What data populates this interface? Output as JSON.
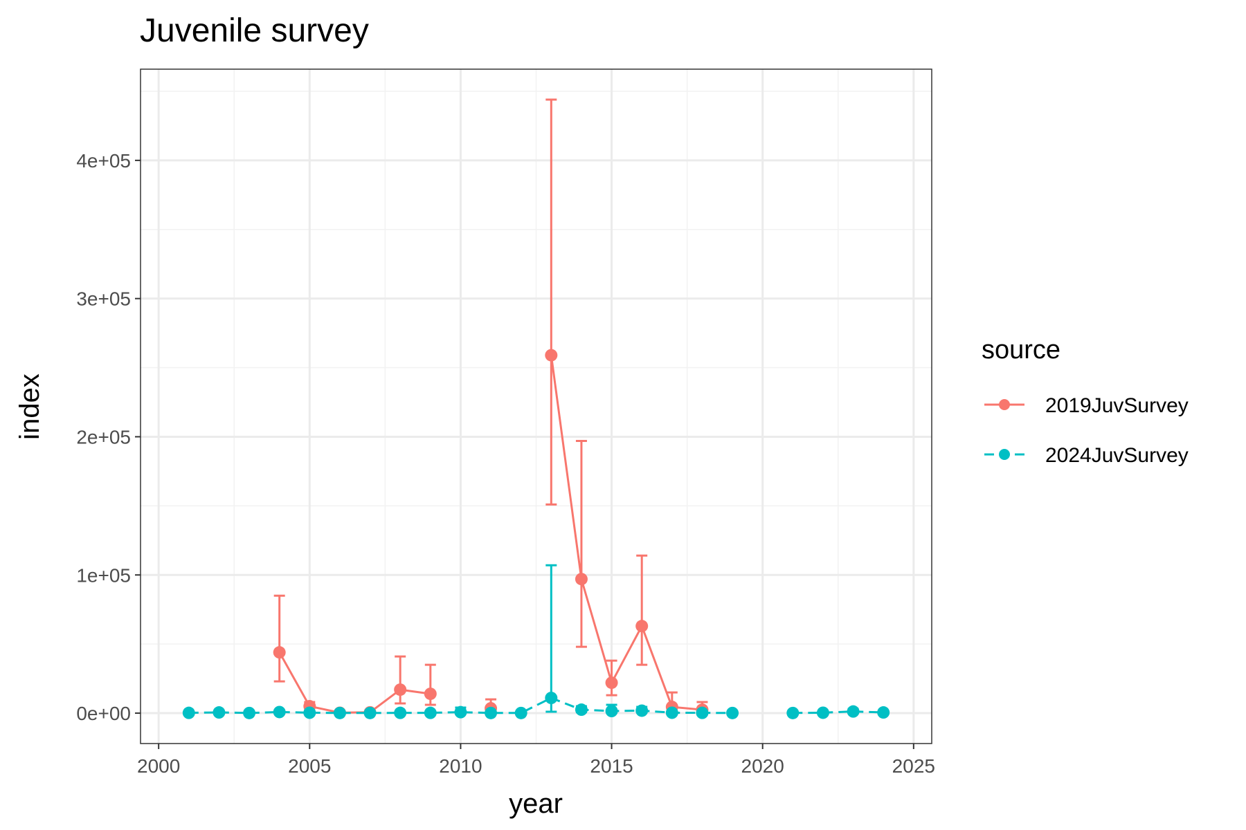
{
  "chart_data": {
    "type": "scatter",
    "title": "Juvenile survey",
    "xlabel": "year",
    "ylabel": "index",
    "xlim": [
      1999.4,
      2025.6
    ],
    "ylim": [
      -22000,
      466000
    ],
    "x_ticks": [
      2000,
      2005,
      2010,
      2015,
      2020,
      2025
    ],
    "x_tick_labels": [
      "2000",
      "2005",
      "2010",
      "2015",
      "2020",
      "2025"
    ],
    "y_ticks": [
      0,
      100000,
      200000,
      300000,
      400000
    ],
    "y_tick_labels": [
      "0e+00",
      "1e+05",
      "2e+05",
      "3e+05",
      "4e+05"
    ],
    "grid": true,
    "legend": {
      "title": "source",
      "position": "right"
    },
    "series": [
      {
        "name": "2019JuvSurvey",
        "color": "#F8766D",
        "points": [
          {
            "x": 2004,
            "y": 44000,
            "lo": 23000,
            "hi": 85000
          },
          {
            "x": 2005,
            "y": 5000,
            "lo": 2000,
            "hi": 8000
          },
          {
            "x": 2006,
            "y": 300,
            "lo": 100,
            "hi": 800
          },
          {
            "x": 2007,
            "y": 600,
            "lo": 200,
            "hi": 1500
          },
          {
            "x": 2008,
            "y": 17000,
            "lo": 7000,
            "hi": 41000
          },
          {
            "x": 2009,
            "y": 14000,
            "lo": 6000,
            "hi": 35000
          },
          {
            "x": 2011,
            "y": 3500,
            "lo": 1000,
            "hi": 10000
          },
          {
            "x": 2013,
            "y": 259000,
            "lo": 151000,
            "hi": 444000
          },
          {
            "x": 2014,
            "y": 97000,
            "lo": 48000,
            "hi": 197000
          },
          {
            "x": 2015,
            "y": 22000,
            "lo": 13000,
            "hi": 38000
          },
          {
            "x": 2016,
            "y": 63000,
            "lo": 35000,
            "hi": 114000
          },
          {
            "x": 2017,
            "y": 4500,
            "lo": 1500,
            "hi": 15000
          },
          {
            "x": 2018,
            "y": 2500,
            "lo": 800,
            "hi": 8000
          }
        ]
      },
      {
        "name": "2024JuvSurvey",
        "color": "#00BFC4",
        "points": [
          {
            "x": 2001,
            "y": 200,
            "lo": 50,
            "hi": 600
          },
          {
            "x": 2002,
            "y": 500,
            "lo": 100,
            "hi": 1500
          },
          {
            "x": 2003,
            "y": 100,
            "lo": 20,
            "hi": 400
          },
          {
            "x": 2004,
            "y": 800,
            "lo": 300,
            "hi": 2000
          },
          {
            "x": 2005,
            "y": 300,
            "lo": 100,
            "hi": 900
          },
          {
            "x": 2006,
            "y": 100,
            "lo": 20,
            "hi": 300
          },
          {
            "x": 2007,
            "y": 100,
            "lo": 20,
            "hi": 300
          },
          {
            "x": 2008,
            "y": 200,
            "lo": 50,
            "hi": 600
          },
          {
            "x": 2009,
            "y": 200,
            "lo": 50,
            "hi": 700
          },
          {
            "x": 2010,
            "y": 700,
            "lo": 100,
            "hi": 4000
          },
          {
            "x": 2011,
            "y": 100,
            "lo": 20,
            "hi": 400
          },
          {
            "x": 2012,
            "y": 100,
            "lo": 20,
            "hi": 400
          },
          {
            "x": 2013,
            "y": 11000,
            "lo": 1000,
            "hi": 107000
          },
          {
            "x": 2014,
            "y": 2500,
            "lo": 800,
            "hi": 5000
          },
          {
            "x": 2015,
            "y": 1500,
            "lo": 300,
            "hi": 6000
          },
          {
            "x": 2016,
            "y": 1800,
            "lo": 400,
            "hi": 4500
          },
          {
            "x": 2017,
            "y": 300,
            "lo": 100,
            "hi": 1200
          },
          {
            "x": 2018,
            "y": 200,
            "lo": 50,
            "hi": 700
          },
          {
            "x": 2019,
            "y": 100,
            "lo": 20,
            "hi": 400
          },
          {
            "x": 2021,
            "y": 100,
            "lo": 20,
            "hi": 400
          },
          {
            "x": 2022,
            "y": 300,
            "lo": 100,
            "hi": 900
          },
          {
            "x": 2023,
            "y": 1200,
            "lo": 400,
            "hi": 3000
          },
          {
            "x": 2024,
            "y": 500,
            "lo": 100,
            "hi": 1500
          }
        ]
      }
    ]
  }
}
